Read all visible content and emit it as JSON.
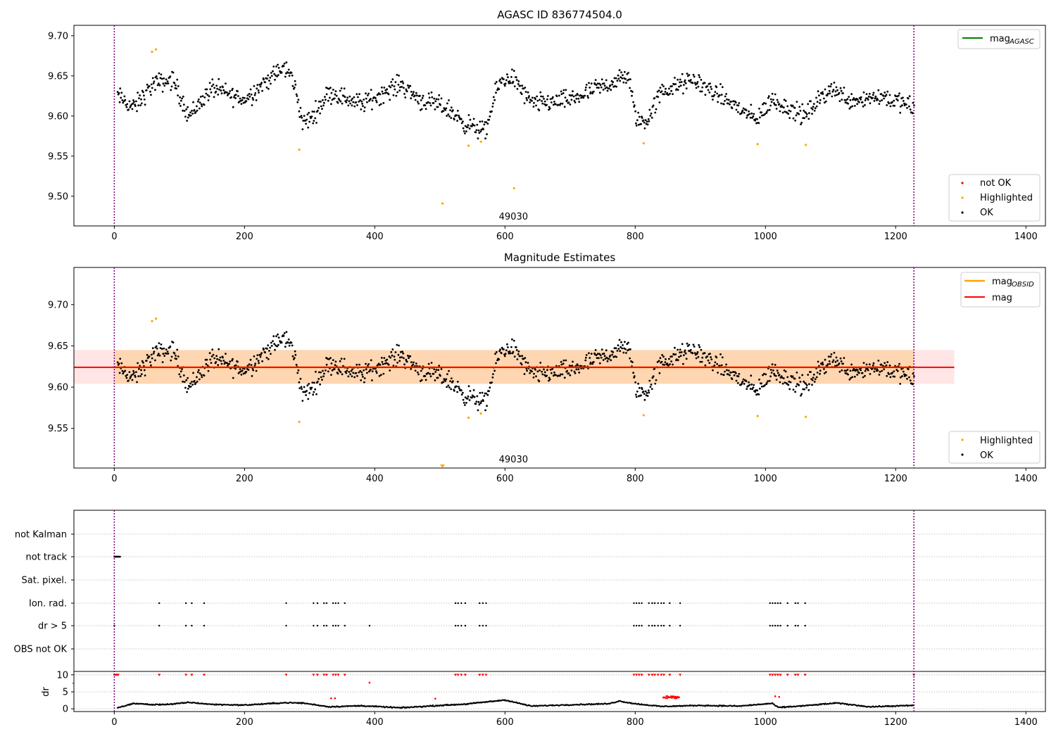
{
  "chart_data": [
    {
      "type": "scatter",
      "title": "AGASC ID 836774504.0",
      "xlim": [
        -62,
        1430
      ],
      "ylim": [
        9.463,
        9.713
      ],
      "xticks": [
        "0",
        "200",
        "400",
        "600",
        "800",
        "1000",
        "1200",
        "1400"
      ],
      "yticks": [
        "9.50",
        "9.55",
        "9.60",
        "9.65",
        "9.70"
      ],
      "vlines": [
        0,
        1228
      ],
      "annotation": {
        "text": "49030",
        "x": 613
      },
      "legend_top": {
        "position": "top-right",
        "entries": [
          {
            "label": "mag",
            "sub": "AGASC",
            "color": "#008000"
          }
        ]
      },
      "legend_bottom": {
        "position": "bottom-right",
        "entries": [
          {
            "label": "not OK",
            "color": "#ff0000"
          },
          {
            "label": "Highlighted",
            "color": "#ffa500"
          },
          {
            "label": "OK",
            "color": "#000000"
          }
        ]
      },
      "series": [
        {
          "name": "Highlighted",
          "color": "#ffa500",
          "x": [
            58,
            64,
            284,
            504,
            544,
            563,
            614,
            813,
            988,
            1062
          ],
          "y": [
            9.68,
            9.683,
            9.558,
            9.491,
            9.563,
            9.568,
            9.51,
            9.566,
            9.565,
            9.564
          ]
        },
        {
          "name": "OK",
          "color": "#000000",
          "profile": {
            "x": [
              5,
              30,
              60,
              90,
              115,
              150,
              200,
              235,
              262,
              275,
              290,
              305,
              330,
              380,
              440,
              470,
              510,
              540,
              570,
              590,
              610,
              640,
              700,
              760,
              790,
              800,
              815,
              840,
              890,
              950,
              985,
              1010,
              1060,
              1100,
              1130,
              1180,
              1228
            ],
            "y": [
              9.625,
              9.61,
              9.64,
              9.645,
              9.6,
              9.635,
              9.62,
              9.645,
              9.66,
              9.645,
              9.59,
              9.6,
              9.63,
              9.615,
              9.64,
              9.62,
              9.61,
              9.59,
              9.58,
              9.64,
              9.65,
              9.615,
              9.62,
              9.64,
              9.65,
              9.6,
              9.59,
              9.63,
              9.645,
              9.615,
              9.595,
              9.62,
              9.6,
              9.635,
              9.62,
              9.625,
              9.61
            ]
          },
          "x_range": [
            5,
            1228
          ],
          "count": 1150,
          "scatter": 0.016
        }
      ]
    },
    {
      "type": "scatter",
      "title": "Magnitude Estimates",
      "xlim": [
        -62,
        1430
      ],
      "ylim": [
        9.502,
        9.745
      ],
      "xticks": [
        "0",
        "200",
        "400",
        "600",
        "800",
        "1000",
        "1200",
        "1400"
      ],
      "yticks": [
        "9.55",
        "9.60",
        "9.65",
        "9.70"
      ],
      "vlines": [
        0,
        1228
      ],
      "annotation": {
        "text": "49030",
        "x": 613
      },
      "mag_obsid": {
        "value": 9.624,
        "band": [
          9.604,
          9.645
        ],
        "x_range": [
          0,
          1228
        ],
        "color": "#ffa500"
      },
      "mag": {
        "value": 9.624,
        "band": [
          9.604,
          9.645
        ],
        "x_range": [
          -62,
          1290
        ],
        "color": "#ff0000"
      },
      "legend_top": {
        "position": "top-right",
        "entries": [
          {
            "label": "mag",
            "sub": "OBSID",
            "color": "#ffa500"
          },
          {
            "label": "mag",
            "color": "#ff0000"
          }
        ]
      },
      "legend_bottom": {
        "position": "bottom-right",
        "entries": [
          {
            "label": "Highlighted",
            "color": "#ffa500"
          },
          {
            "label": "OK",
            "color": "#000000"
          }
        ]
      },
      "series": [
        {
          "name": "Highlighted",
          "color": "#ffa500",
          "x": [
            58,
            64,
            284,
            544,
            563,
            813,
            988,
            1062
          ],
          "y": [
            9.68,
            9.683,
            9.558,
            9.563,
            9.568,
            9.566,
            9.565,
            9.564
          ],
          "outlier_marker": {
            "x": 504,
            "note": "below axis"
          }
        },
        {
          "name": "OK",
          "color": "#000000",
          "same_as_chart": 0
        }
      ]
    },
    {
      "type": "scatter",
      "title": "",
      "xlim": [
        -62,
        1430
      ],
      "xticks": [
        "0",
        "200",
        "400",
        "600",
        "800",
        "1000",
        "1200",
        "1400"
      ],
      "vlines": [
        0,
        1228
      ],
      "flag_rows": [
        "not Kalman",
        "not track",
        "Sat. pixel.",
        "Ion. rad.",
        "dr > 5",
        "OBS not OK"
      ],
      "flags": {
        "not track": {
          "x_range": [
            0,
            9
          ],
          "color": "#000000"
        },
        "Ion. rad.": {
          "x": [
            69,
            110,
            119,
            138,
            264,
            306,
            312,
            322,
            326,
            336,
            340,
            344,
            354,
            524,
            528,
            533,
            539,
            561,
            566,
            571,
            798,
            802,
            806,
            810,
            821,
            826,
            830,
            835,
            840,
            844,
            853,
            869,
            1007,
            1011,
            1015,
            1019,
            1023,
            1034,
            1046,
            1050,
            1061
          ],
          "color": "#000000"
        },
        "dr > 5": {
          "x": [
            0,
            69,
            110,
            119,
            138,
            264,
            306,
            312,
            322,
            326,
            336,
            340,
            344,
            354,
            392,
            524,
            528,
            533,
            539,
            561,
            566,
            571,
            798,
            802,
            806,
            810,
            821,
            826,
            830,
            835,
            840,
            844,
            853,
            869,
            1007,
            1011,
            1015,
            1019,
            1023,
            1034,
            1046,
            1050,
            1061
          ],
          "color": "#000000"
        }
      },
      "dr_axis": {
        "ylabel": "dr",
        "yticks": [
          "0",
          "5",
          "10"
        ],
        "ylim": [
          -0.8,
          11
        ],
        "clipped_at_10": [
          0,
          2,
          4,
          6,
          69,
          110,
          119,
          138,
          264,
          306,
          312,
          322,
          326,
          336,
          340,
          344,
          354,
          524,
          528,
          533,
          539,
          561,
          566,
          571,
          798,
          802,
          806,
          810,
          821,
          826,
          830,
          835,
          840,
          844,
          853,
          869,
          1007,
          1011,
          1015,
          1019,
          1023,
          1034,
          1046,
          1050,
          1061,
          1228
        ],
        "high_points": [
          [
            392,
            7.7
          ],
          [
            333,
            3.1
          ],
          [
            339,
            3.1
          ],
          [
            493,
            3.0
          ],
          [
            1015,
            3.7
          ],
          [
            1021,
            3.5
          ]
        ],
        "cluster": {
          "x_range": [
            843,
            868
          ],
          "y": 3.4
        },
        "profile": {
          "x": [
            5,
            30,
            60,
            90,
            115,
            150,
            200,
            262,
            290,
            330,
            380,
            440,
            500,
            540,
            600,
            640,
            700,
            760,
            775,
            800,
            840,
            900,
            960,
            1010,
            1020,
            1060,
            1090,
            1110,
            1160,
            1228
          ],
          "y": [
            0.3,
            1.6,
            1.2,
            1.4,
            1.9,
            1.3,
            1.1,
            1.8,
            1.7,
            0.6,
            0.9,
            0.3,
            1.0,
            1.4,
            2.6,
            0.8,
            1.2,
            1.5,
            2.3,
            1.5,
            0.7,
            1.0,
            0.8,
            1.6,
            0.4,
            0.9,
            1.4,
            1.7,
            0.6,
            1.0
          ]
        },
        "x_range": [
          5,
          1228
        ],
        "count": 1150
      }
    }
  ]
}
